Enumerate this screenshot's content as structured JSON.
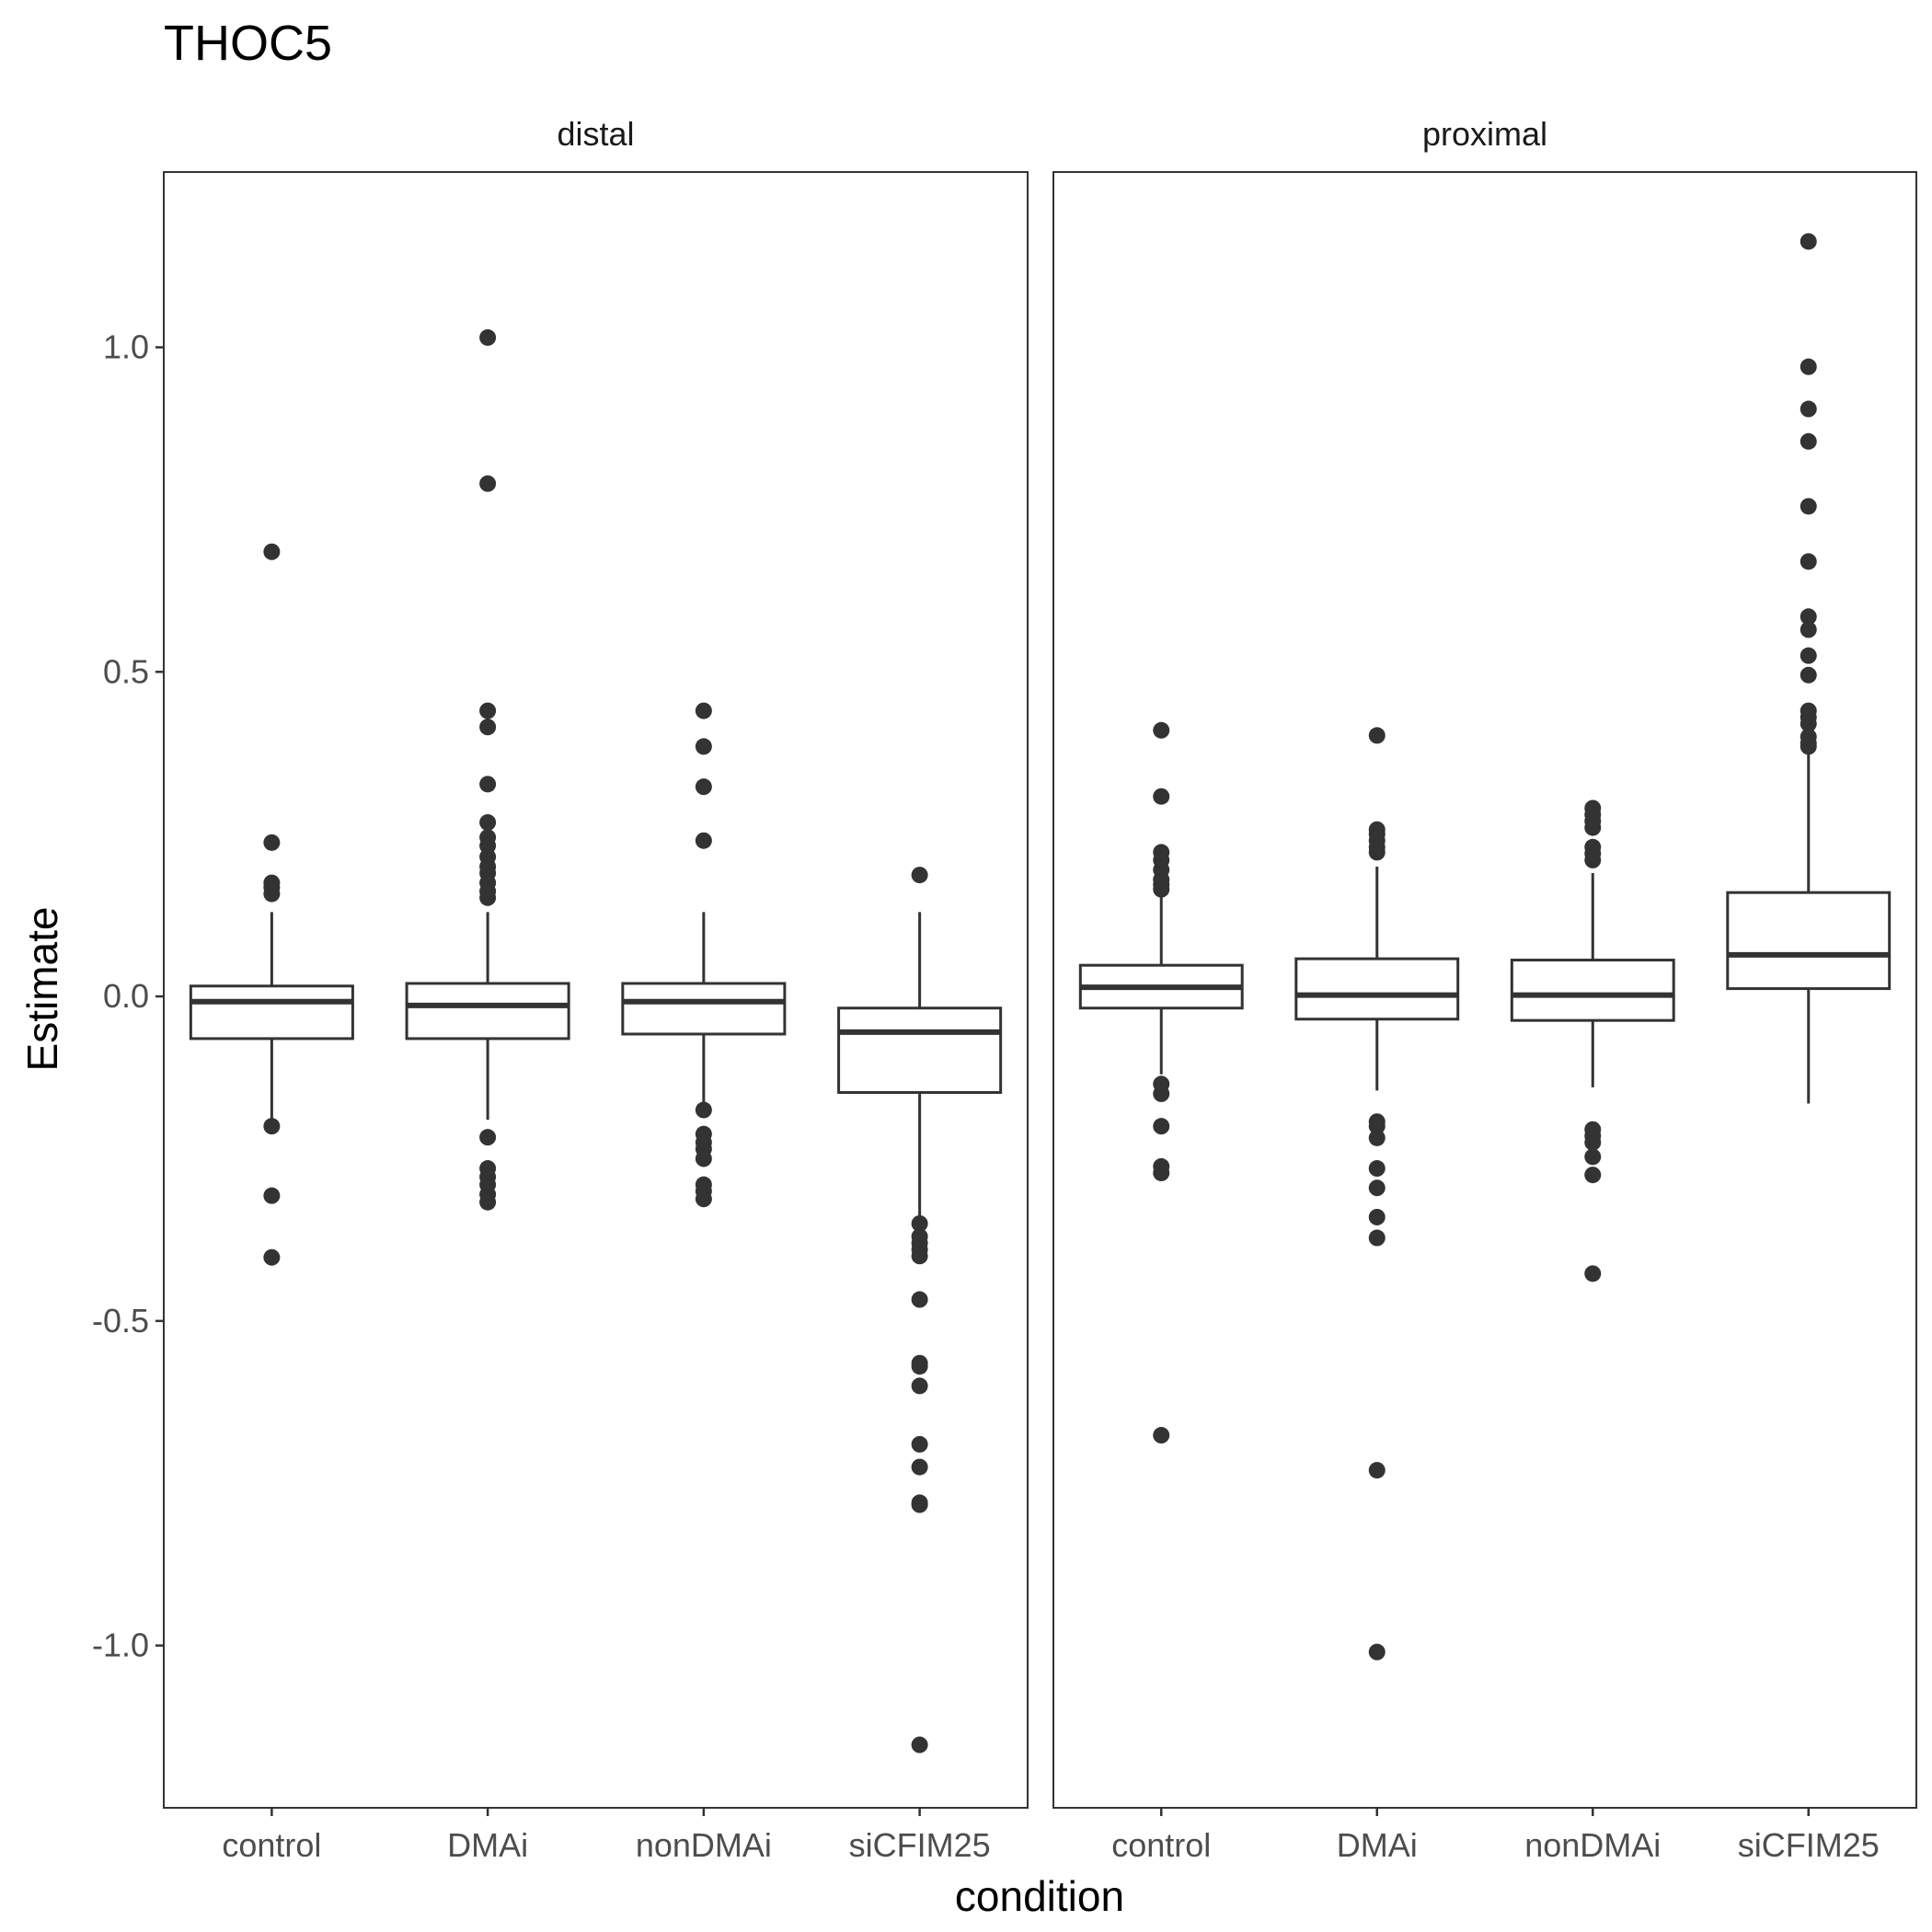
{
  "chart_data": {
    "type": "boxplot",
    "title": "THOC5",
    "xlabel": "condition",
    "ylabel": "Estimate",
    "ylim": [
      -1.25,
      1.27
    ],
    "yticks": [
      1.0,
      0.5,
      0.0,
      -0.5,
      -1.0
    ],
    "ytick_labels": [
      "1.0",
      "0.5",
      "0.0",
      "-0.5",
      "-1.0"
    ],
    "categories": [
      "control",
      "DMAi",
      "nonDMAi",
      "siCFIM25"
    ],
    "grid": false,
    "facets": [
      {
        "name": "distal",
        "boxes": [
          {
            "category": "control",
            "q1": -0.065,
            "median": -0.008,
            "q3": 0.016,
            "whisker_low": -0.19,
            "whisker_high": 0.13,
            "outliers": [
              0.685,
              0.237,
              0.175,
              0.168,
              0.158,
              -0.2,
              -0.307,
              -0.402
            ]
          },
          {
            "category": "DMAi",
            "q1": -0.065,
            "median": -0.014,
            "q3": 0.02,
            "whisker_low": -0.19,
            "whisker_high": 0.13,
            "outliers": [
              1.015,
              0.79,
              0.44,
              0.415,
              0.327,
              0.268,
              0.245,
              0.232,
              0.215,
              0.2,
              0.19,
              0.175,
              0.162,
              0.152,
              -0.217,
              -0.265,
              -0.278,
              -0.29,
              -0.305,
              -0.317
            ]
          },
          {
            "category": "nonDMAi",
            "q1": -0.058,
            "median": -0.008,
            "q3": 0.02,
            "whisker_low": -0.17,
            "whisker_high": 0.13,
            "outliers": [
              0.44,
              0.385,
              0.323,
              0.24,
              -0.175,
              -0.212,
              -0.225,
              -0.235,
              -0.25,
              -0.29,
              -0.3,
              -0.312
            ]
          },
          {
            "category": "siCFIM25",
            "q1": -0.148,
            "median": -0.055,
            "q3": -0.018,
            "whisker_low": -0.34,
            "whisker_high": 0.13,
            "outliers": [
              0.187,
              -0.35,
              -0.37,
              -0.38,
              -0.39,
              -0.4,
              -0.467,
              -0.565,
              -0.57,
              -0.6,
              -0.69,
              -0.725,
              -0.78,
              -0.783,
              -1.153
            ]
          }
        ]
      },
      {
        "name": "proximal",
        "boxes": [
          {
            "category": "control",
            "q1": -0.018,
            "median": 0.014,
            "q3": 0.048,
            "whisker_low": -0.12,
            "whisker_high": 0.16,
            "outliers": [
              0.41,
              0.308,
              0.222,
              0.21,
              0.195,
              0.18,
              0.172,
              0.165,
              -0.135,
              -0.15,
              -0.2,
              -0.262,
              -0.272,
              -0.676
            ]
          },
          {
            "category": "DMAi",
            "q1": -0.035,
            "median": 0.002,
            "q3": 0.058,
            "whisker_low": -0.145,
            "whisker_high": 0.2,
            "outliers": [
              0.402,
              0.257,
              0.25,
              0.24,
              0.23,
              0.222,
              -0.193,
              -0.2,
              -0.218,
              -0.265,
              -0.295,
              -0.34,
              -0.372,
              -0.73,
              -1.01
            ]
          },
          {
            "category": "nonDMAi",
            "q1": -0.037,
            "median": 0.002,
            "q3": 0.056,
            "whisker_low": -0.14,
            "whisker_high": 0.19,
            "outliers": [
              0.29,
              0.28,
              0.27,
              0.26,
              0.23,
              0.22,
              0.21,
              -0.205,
              -0.215,
              -0.225,
              -0.247,
              -0.275,
              -0.427
            ]
          },
          {
            "category": "siCFIM25",
            "q1": 0.012,
            "median": 0.064,
            "q3": 0.16,
            "whisker_low": -0.165,
            "whisker_high": 0.38,
            "outliers": [
              1.163,
              0.97,
              0.905,
              0.855,
              0.755,
              0.67,
              0.585,
              0.565,
              0.525,
              0.495,
              0.44,
              0.43,
              0.42,
              0.4,
              0.39,
              0.385
            ]
          }
        ]
      }
    ]
  }
}
